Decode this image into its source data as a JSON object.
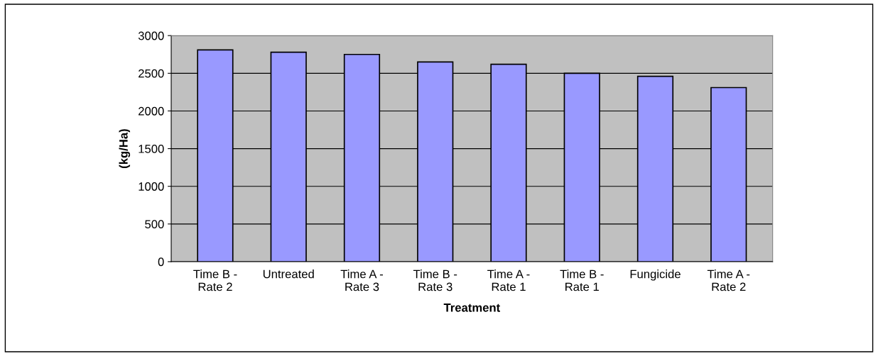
{
  "chart_data": {
    "type": "bar",
    "xlabel": "Treatment",
    "ylabel": "(kg/Ha)",
    "categories": [
      "Time B -\nRate 2",
      "Untreated",
      "Time A -\nRate 3",
      "Time B -\nRate 3",
      "Time A -\nRate 1",
      "Time B -\nRate 1",
      "Fungicide",
      "Time A -\nRate 2"
    ],
    "values": [
      2810,
      2780,
      2750,
      2650,
      2620,
      2500,
      2460,
      2310
    ],
    "color": "#9999ff",
    "ylim": [
      0,
      3000
    ],
    "yticks": [
      0,
      500,
      1000,
      1500,
      2000,
      2500,
      3000
    ],
    "grid": "y"
  }
}
